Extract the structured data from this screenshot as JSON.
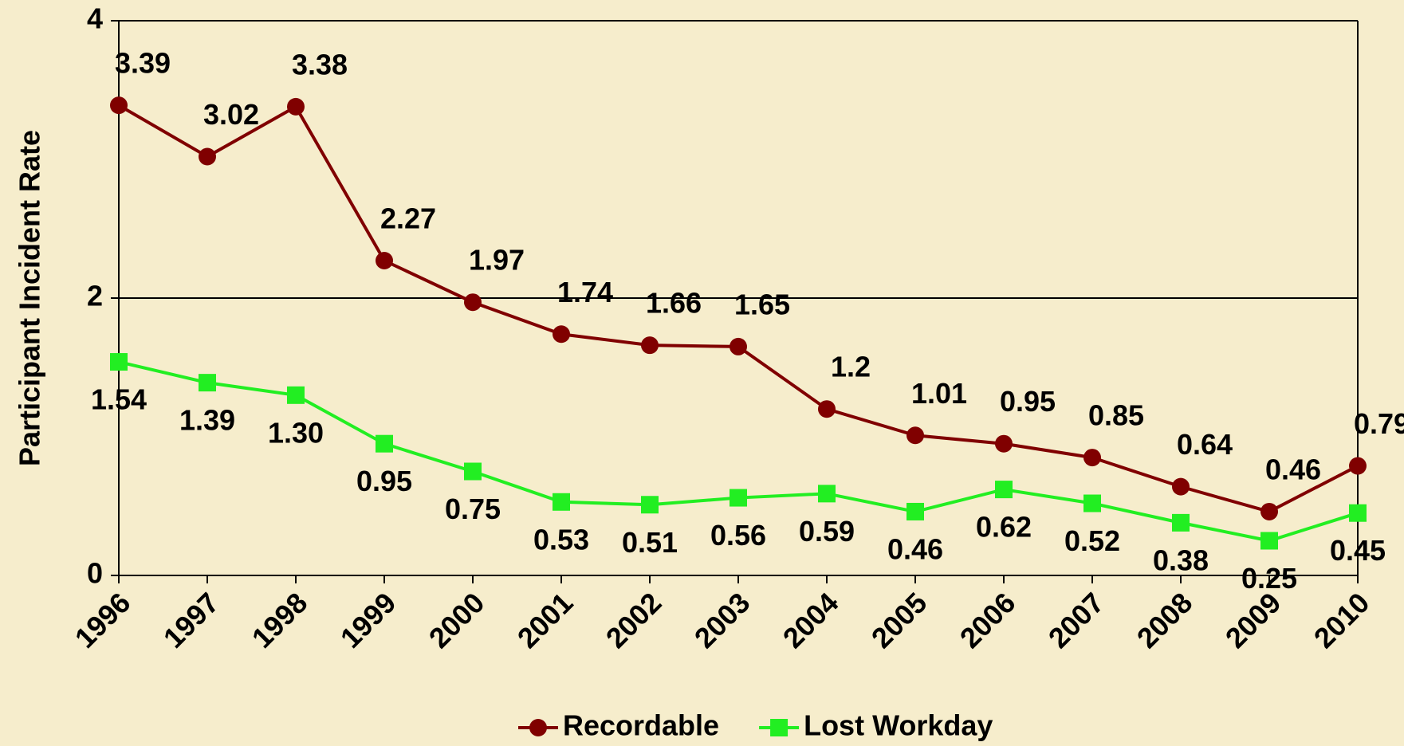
{
  "chart_data": {
    "type": "line",
    "y_label": "Participant Incident Rate",
    "categories": [
      "1996",
      "1997",
      "1998",
      "1999",
      "2000",
      "2001",
      "2002",
      "2003",
      "2004",
      "2005",
      "2006",
      "2007",
      "2008",
      "2009",
      "2010"
    ],
    "series": [
      {
        "name": "Recordable",
        "color": "#800000",
        "marker": "circle",
        "values": [
          3.39,
          3.02,
          3.38,
          2.27,
          1.97,
          1.74,
          1.66,
          1.65,
          1.2,
          1.01,
          0.95,
          0.85,
          0.64,
          0.46,
          0.79
        ]
      },
      {
        "name": "Lost Workday",
        "color": "#22ee22",
        "marker": "square",
        "values": [
          1.54,
          1.39,
          1.3,
          0.95,
          0.75,
          0.53,
          0.51,
          0.56,
          0.59,
          0.46,
          0.62,
          0.52,
          0.38,
          0.25,
          0.45
        ],
        "value_labels": [
          "1.54",
          "1.39",
          "1.30",
          "0.95",
          "0.75",
          "0.53",
          "0.51",
          "0.56",
          "0.59",
          "0.46",
          "0.62",
          "0.52",
          "0.38",
          "0.25",
          "0.45"
        ]
      }
    ],
    "ylim": [
      0,
      4
    ],
    "yticks": [
      0,
      2,
      4
    ],
    "grid": true,
    "legend": "bottom"
  }
}
